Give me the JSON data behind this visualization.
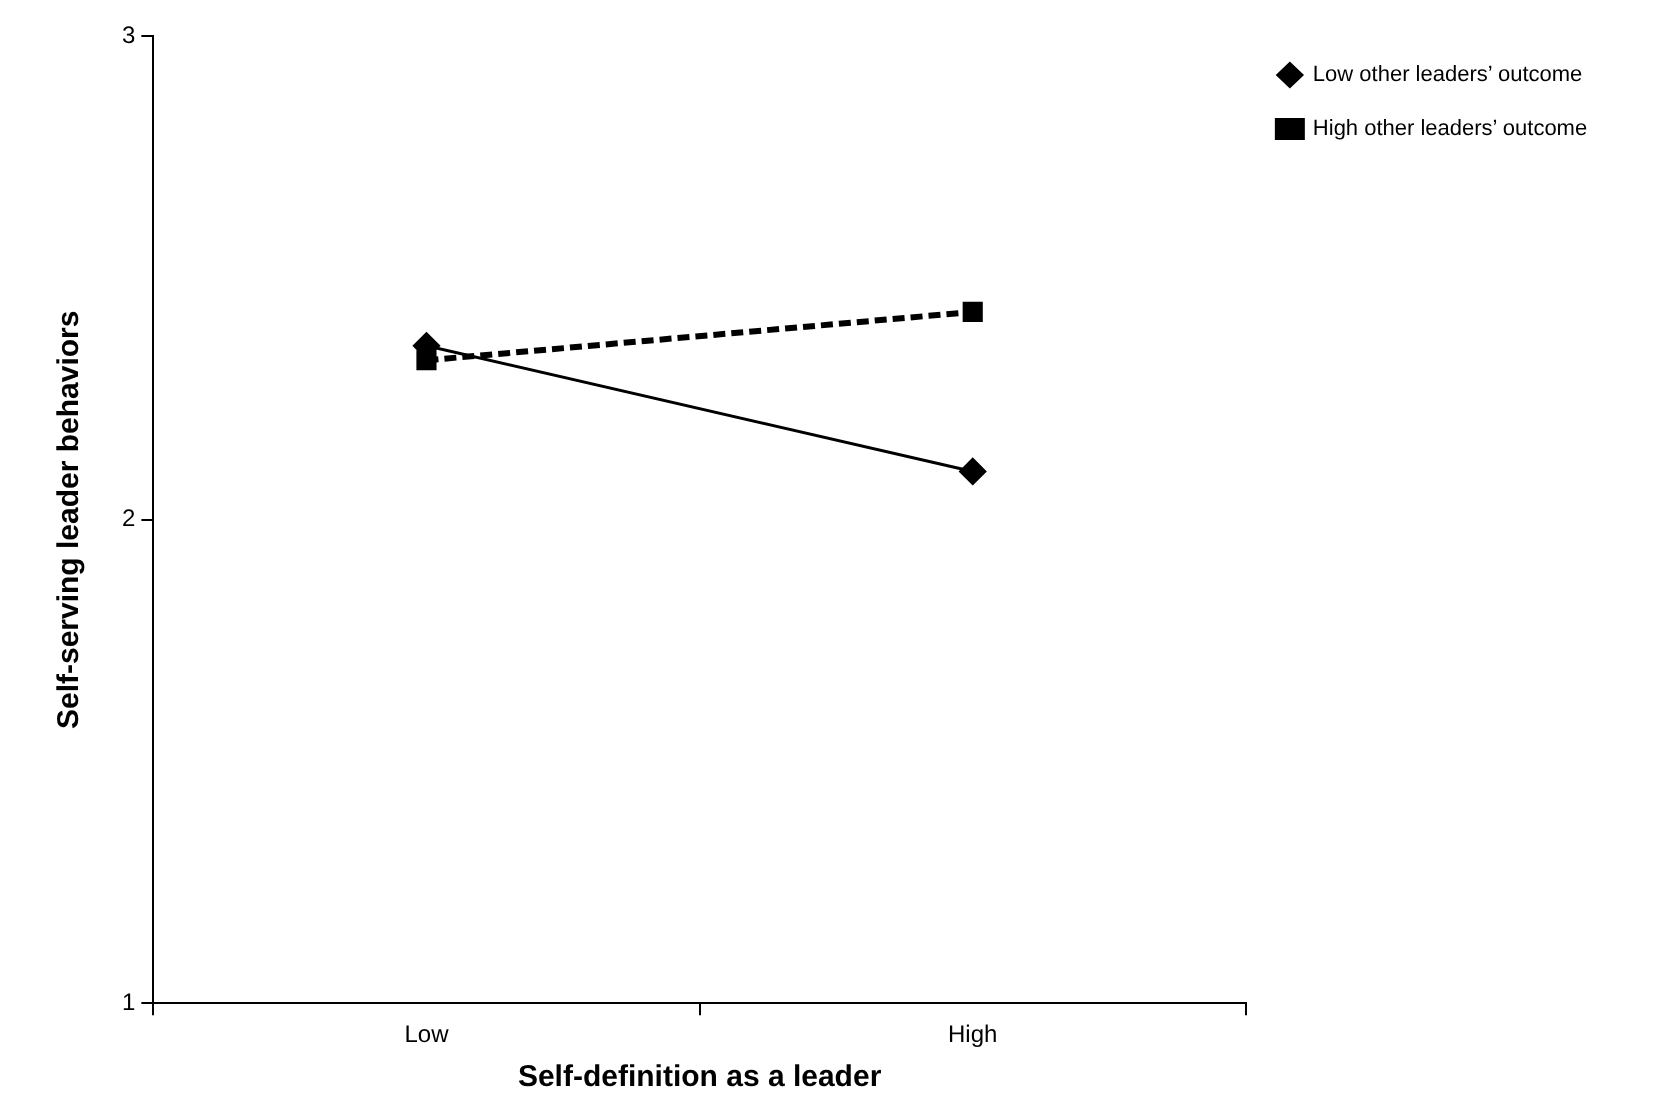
{
  "chart_data": {
    "type": "line",
    "xlabel": "Self-definition as a leader",
    "ylabel": "Self-serving leader behaviors",
    "categories": [
      "Low",
      "High"
    ],
    "series": [
      {
        "name": "Low other leaders’ outcome",
        "color": "#000000",
        "values": [
          2.36,
          2.1
        ],
        "marker": "diamond",
        "line_style": "solid"
      },
      {
        "name": "High other leaders’ outcome",
        "color": "#000000",
        "values": [
          2.33,
          2.43
        ],
        "marker": "square",
        "line_style": "dashed"
      }
    ],
    "ylim": [
      1,
      3
    ],
    "yticks": [
      1,
      2,
      3
    ],
    "grid": false,
    "legend": "top right"
  }
}
